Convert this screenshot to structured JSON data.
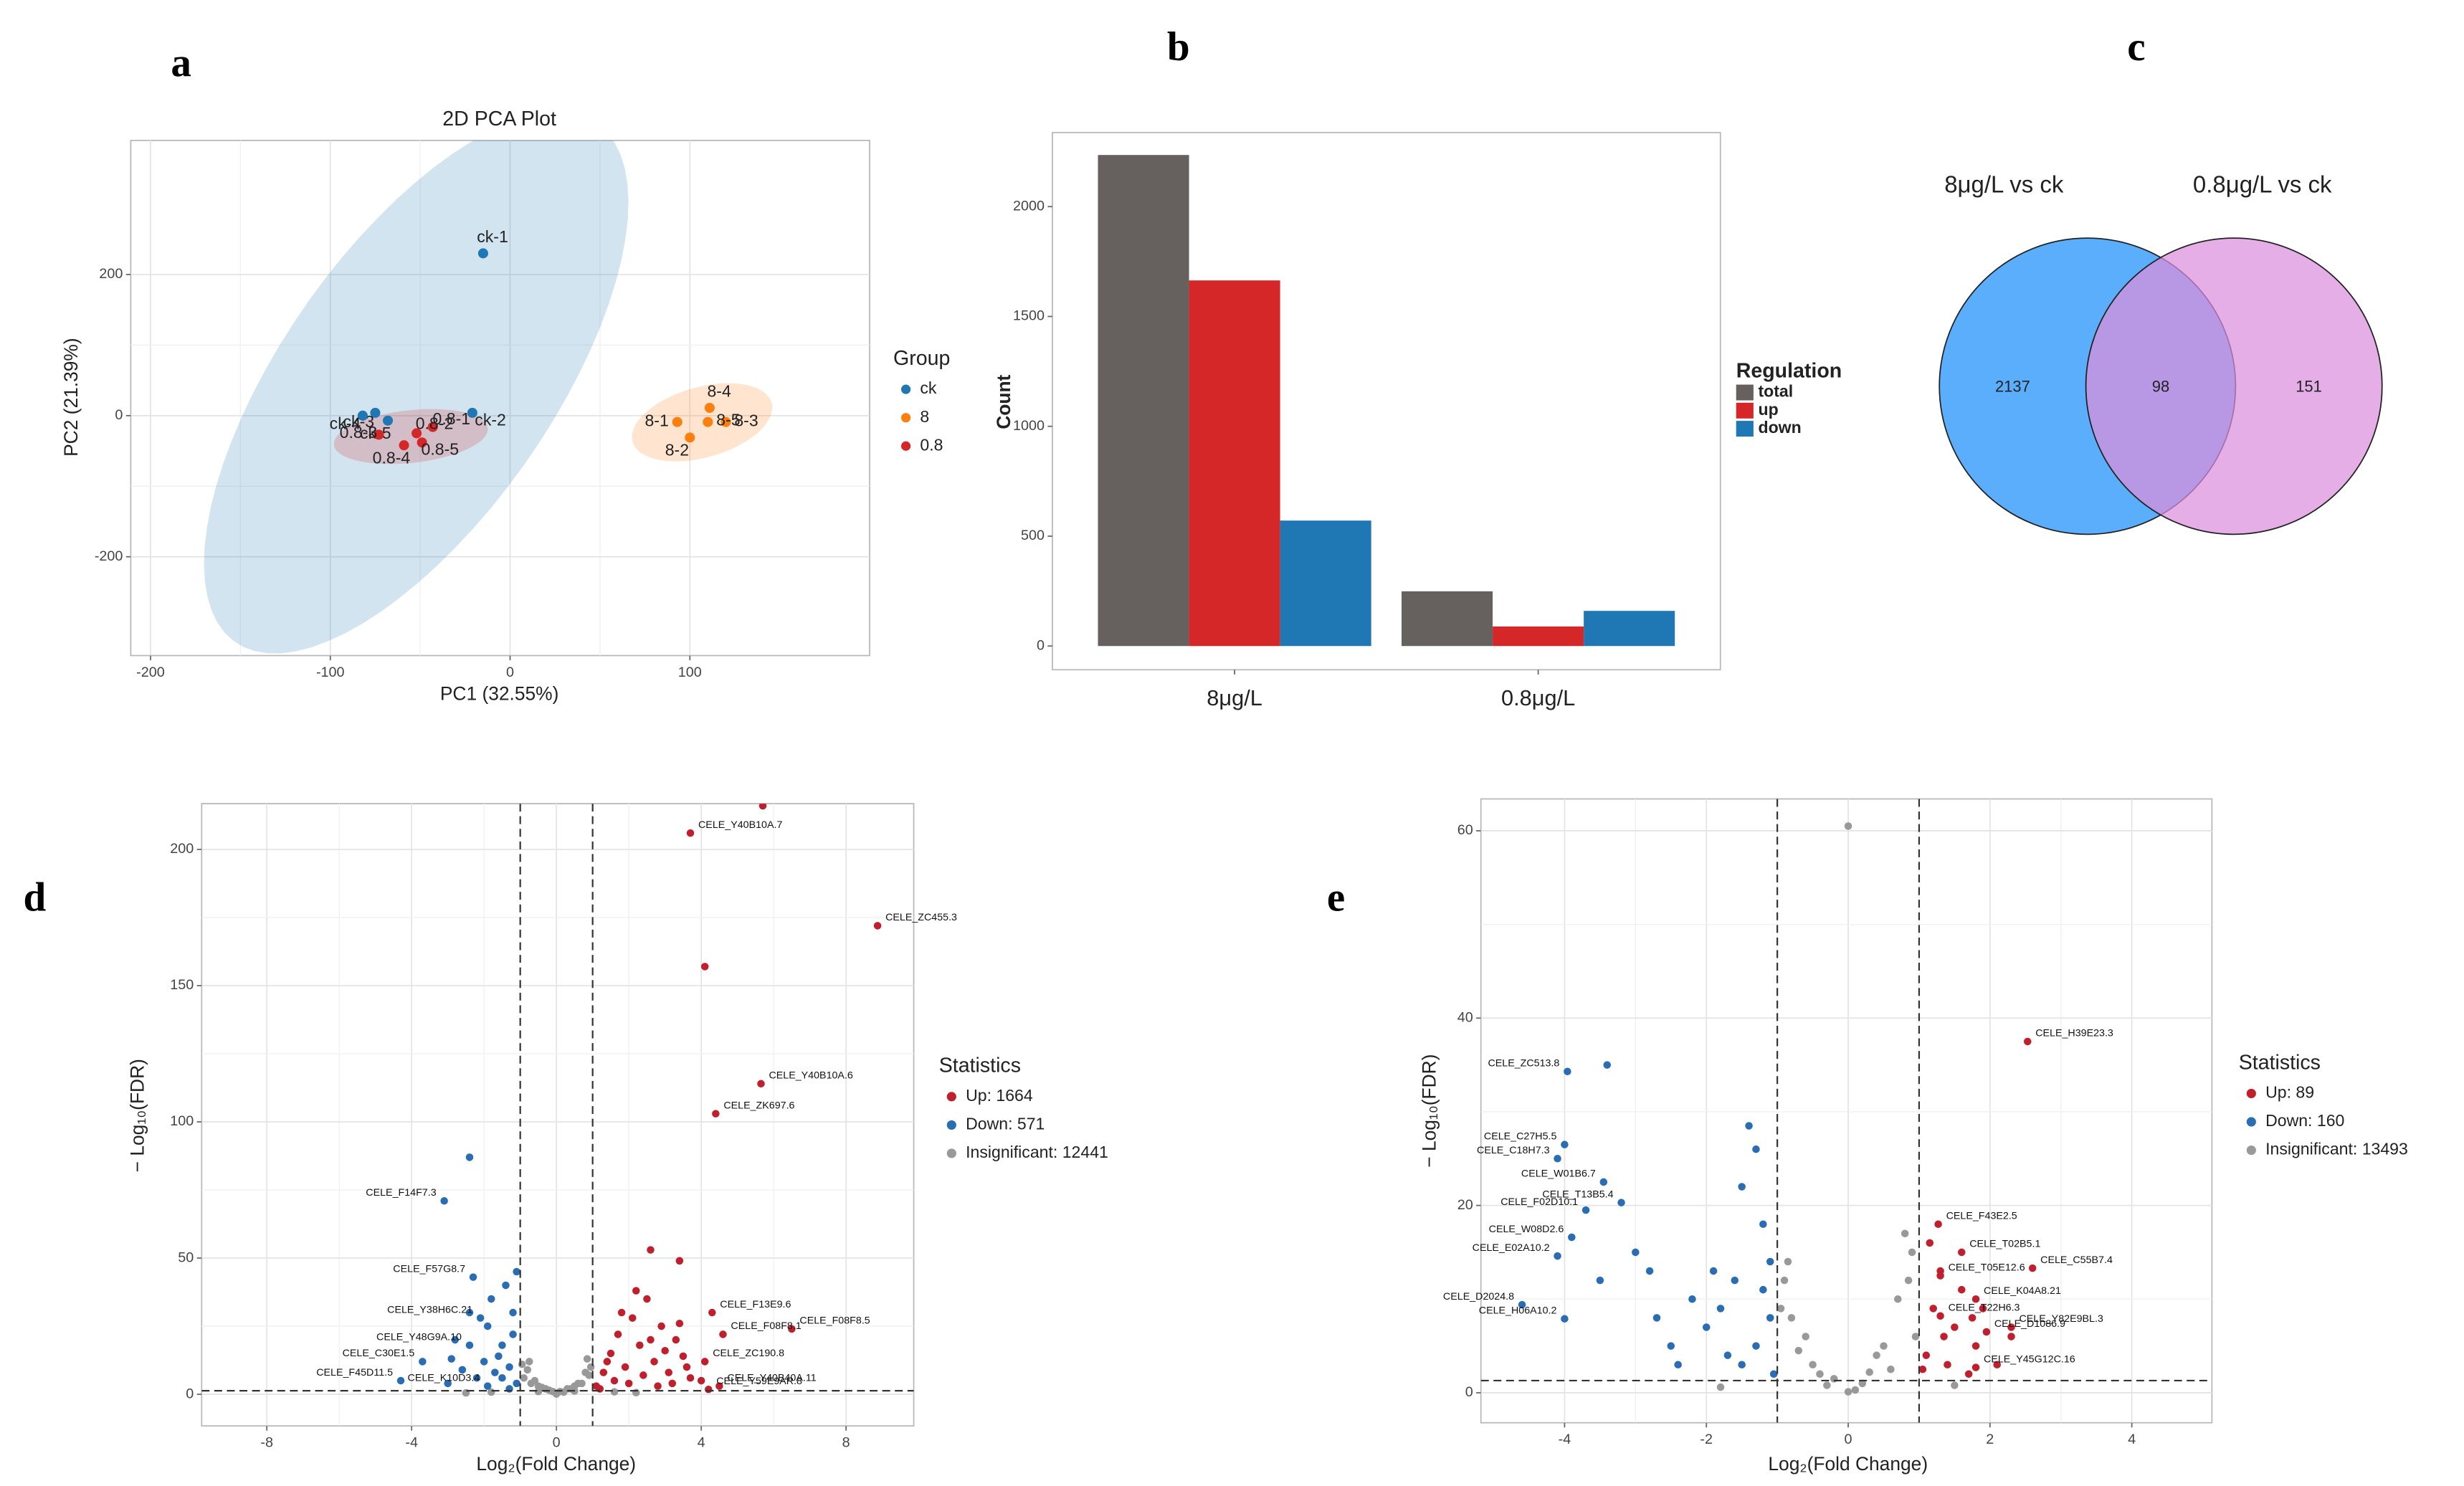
{
  "chart_data": [
    {
      "panel": "a",
      "type": "scatter",
      "title": "2D PCA Plot",
      "x_label": "PC1 (32.55%)",
      "y_label": "PC2 (21.39%)",
      "legend_title": "Group",
      "xlim": [
        -211,
        200
      ],
      "ylim": [
        -340,
        390
      ],
      "xticks": [
        -200,
        -100,
        0,
        100
      ],
      "yticks": [
        -200,
        0,
        200
      ],
      "grid": true,
      "ellipses": true,
      "series": [
        {
          "name": "ck",
          "color": "#1f77b4",
          "x": [
            -15,
            -21,
            -75,
            -82,
            -68
          ],
          "y": [
            230,
            4,
            4,
            0,
            -7
          ],
          "point_labels": [
            "ck-1",
            "ck-2",
            "ck-3",
            "ck-4",
            "ck-5"
          ]
        },
        {
          "name": "8",
          "color": "#ff7f0e",
          "x": [
            93,
            100,
            120,
            111,
            110
          ],
          "y": [
            -9,
            -31,
            -9,
            11,
            -9
          ],
          "point_labels": [
            "8-1",
            "8-2",
            "8-3",
            "8-4",
            "8-5"
          ]
        },
        {
          "name": "0.8",
          "color": "#d62728",
          "x": [
            -43,
            -52,
            -73,
            -59,
            -49
          ],
          "y": [
            -16,
            -25,
            -27,
            -42,
            -38
          ],
          "point_labels": [
            "0.8-1",
            "0.8-2",
            "0.8-3",
            "0.8-4",
            "0.8-5"
          ]
        }
      ]
    },
    {
      "panel": "b",
      "type": "bar",
      "y_label": "Count",
      "legend_title": "Regulation",
      "categories": [
        "8μg/L",
        "0.8μg/L"
      ],
      "ylim": [
        -108,
        2337
      ],
      "yticks": [
        0,
        500,
        1000,
        1500,
        2000
      ],
      "grid": false,
      "series": [
        {
          "name": "total",
          "color": "#66615e",
          "values": [
            2235,
            249
          ]
        },
        {
          "name": "up",
          "color": "#d62728",
          "values": [
            1664,
            89
          ]
        },
        {
          "name": "down",
          "color": "#1f77b4",
          "values": [
            571,
            160
          ]
        }
      ]
    },
    {
      "panel": "c",
      "type": "venn",
      "sets": [
        {
          "name": "8μg/L vs ck",
          "color": "#5aaefc"
        },
        {
          "name": "0.8μg/L vs ck",
          "color": "#dd8fdc"
        }
      ],
      "values": [
        2137,
        98,
        151
      ]
    },
    {
      "panel": "d",
      "type": "volcano",
      "x_label": "Log₂(Fold Change)",
      "y_label": "− Log₁₀(FDR)",
      "legend_title": "Statistics",
      "xlim": [
        -9.8,
        9.87
      ],
      "ylim": [
        -11.6,
        216.8
      ],
      "xticks": [
        -8,
        -4,
        0,
        4,
        8
      ],
      "yticks": [
        0,
        50,
        100,
        150,
        200
      ],
      "grid": true,
      "x_cutoffs": [
        -1,
        1
      ],
      "y_cutoff": 1.3,
      "series": [
        {
          "name": "Up: 1664",
          "color": "#c0202e",
          "x": [
            5.7,
            3.7,
            8.87,
            4.1,
            5.65,
            4.4,
            2.6,
            3.4,
            6.5,
            4.3,
            4.6,
            4.1,
            4.5,
            4.2,
            1.1,
            1.3,
            1.5,
            1.7,
            1.9,
            2.1,
            2.3,
            2.5,
            2.7,
            2.9,
            3.1,
            3.3,
            3.5,
            3.7,
            1.2,
            1.6,
            2.0,
            2.4,
            2.8,
            3.2,
            3.6,
            4.0,
            1.4,
            1.8,
            2.2,
            2.6,
            3.0,
            3.4
          ],
          "y": [
            216,
            206,
            172,
            157,
            114,
            103,
            53,
            49,
            24,
            30,
            22,
            12,
            3,
            1.8,
            3,
            8,
            15,
            22,
            10,
            28,
            18,
            35,
            12,
            25,
            8,
            20,
            14,
            6,
            2,
            5,
            4,
            7,
            3,
            4,
            10,
            5,
            12,
            30,
            38,
            20,
            16,
            26
          ],
          "point_labels": [
            null,
            "CELE_Y40B10A.7",
            "CELE_ZC455.3",
            null,
            "CELE_Y40B10A.6",
            "CELE_ZK697.6",
            null,
            null,
            "CELE_F08F8.5",
            "CELE_F13E9.6",
            "CELE_F08F8.1",
            "CELE_ZC190.8",
            "CELE_Y40B40A.11",
            "CELE_Y59E9AR.8",
            null,
            null,
            null,
            null,
            null,
            null,
            null,
            null,
            null,
            null,
            null,
            null,
            null,
            null,
            null,
            null,
            null,
            null,
            null,
            null,
            null,
            null,
            null,
            null,
            null,
            null,
            null,
            null
          ]
        },
        {
          "name": "Down: 571",
          "color": "#2a6db5",
          "x": [
            -3.1,
            -2.3,
            -2.1,
            -2.4,
            -3.7,
            -4.3,
            -1.9,
            -1.1,
            -1.3,
            -1.5,
            -1.7,
            -1.9,
            -1.2,
            -1.4,
            -1.1,
            -1.6,
            -2.0,
            -2.2,
            -2.6,
            -2.8,
            -3.0,
            -1.8,
            -1.3,
            -1.5,
            -2.4,
            -2.9,
            -1.2,
            -2.4
          ],
          "y": [
            71,
            43,
            28,
            18,
            12,
            5,
            3,
            4,
            10,
            18,
            8,
            25,
            30,
            40,
            45,
            14,
            12,
            6,
            9,
            20,
            4,
            35,
            2,
            6,
            30,
            13,
            22,
            87
          ],
          "point_labels": [
            "CELE_F14F7.3",
            "CELE_F57G8.7",
            "CELE_Y38H6C.21",
            "CELE_Y48G9A.10",
            "CELE_C30E1.5",
            "CELE_F45D11.5",
            "CELE_K10D3.4",
            null,
            null,
            null,
            null,
            null,
            null,
            null,
            null,
            null,
            null,
            null,
            null,
            null,
            null,
            null,
            null,
            null,
            null,
            null,
            null,
            null
          ]
        },
        {
          "name": "Insignificant: 12441",
          "color": "#999999",
          "x": [
            -0.9,
            -0.7,
            -0.5,
            -0.3,
            -0.1,
            0.1,
            0.3,
            0.5,
            0.7,
            0.9,
            -0.8,
            -0.6,
            -0.4,
            -0.2,
            0,
            0.2,
            0.4,
            0.6,
            0.8,
            -0.95,
            0.95,
            -1.8,
            -2.5,
            1.6,
            2.2,
            -0.75,
            0.85,
            -0.5,
            0.5,
            0.0
          ],
          "y": [
            6,
            4,
            3,
            2,
            1,
            1,
            2,
            3,
            4,
            7,
            9,
            5,
            2.5,
            1.5,
            0.3,
            0.8,
            2,
            4,
            8,
            11,
            10,
            0.8,
            0.5,
            0.9,
            0.6,
            12,
            13,
            1,
            1.2,
            0.1
          ]
        }
      ]
    },
    {
      "panel": "e",
      "type": "volcano",
      "x_label": "Log₂(Fold Change)",
      "y_label": "− Log₁₀(FDR)",
      "legend_title": "Statistics",
      "xlim": [
        -5.18,
        5.13
      ],
      "ylim": [
        -3.2,
        63.4
      ],
      "xticks": [
        -4,
        -2,
        0,
        2,
        4
      ],
      "yticks": [
        0,
        20,
        40,
        60
      ],
      "grid": true,
      "x_cutoffs": [
        -1,
        1
      ],
      "y_cutoff": 1.3,
      "series": [
        {
          "name": "Up: 89",
          "color": "#c0202e",
          "x": [
            2.53,
            1.27,
            1.6,
            2.6,
            1.3,
            1.8,
            1.3,
            2.3,
            1.95,
            1.8,
            1.1,
            1.2,
            1.3,
            1.4,
            1.5,
            1.6,
            1.7,
            1.8,
            1.9,
            2.1,
            2.3,
            1.15,
            1.05,
            1.35,
            1.75
          ],
          "y": [
            37.5,
            18,
            15,
            13.3,
            12.5,
            10,
            8.2,
            7,
            6.5,
            2.7,
            4,
            9,
            13,
            3,
            7,
            11,
            2,
            5,
            9,
            3,
            6,
            16,
            2.5,
            6,
            8
          ],
          "point_labels": [
            "CELE_H39E23.3",
            "CELE_F43E2.5",
            "CELE_T02B5.1",
            "CELE_C55B7.4",
            "CELE_T05E12.6",
            "CELE_K04A8.21",
            "CELE_T22H6.3",
            "CELE_Y82E9BL.3",
            "CELE_D1086.9",
            "CELE_Y45G12C.16",
            null,
            null,
            null,
            null,
            null,
            null,
            null,
            null,
            null,
            null,
            null,
            null,
            null,
            null,
            null
          ]
        },
        {
          "name": "Down: 160",
          "color": "#2a6db5",
          "x": [
            -3.96,
            -4.0,
            -4.1,
            -3.45,
            -3.7,
            -3.2,
            -3.9,
            -4.1,
            -4.6,
            -4.0,
            -3.4,
            -1.4,
            -1.3,
            -1.5,
            -1.2,
            -1.1,
            -1.6,
            -1.8,
            -2.0,
            -2.2,
            -2.5,
            -2.8,
            -3.0,
            -1.3,
            -1.5,
            -1.1,
            -1.7,
            -2.4,
            -1.9,
            -1.2,
            -3.5,
            -2.7,
            -1.05
          ],
          "y": [
            34.3,
            26.5,
            25,
            22.5,
            19.5,
            20.3,
            16.6,
            14.6,
            9.4,
            7.9,
            35,
            28.5,
            26,
            22,
            18,
            14,
            12,
            9,
            7,
            10,
            5,
            13,
            15,
            5,
            3,
            8,
            4,
            3,
            13,
            11,
            12,
            8,
            2
          ],
          "point_labels": [
            "CELE_ZC513.8",
            "CELE_C27H5.5",
            "CELE_C18H7.3",
            "CELE_W01B6.7",
            "CELE_F02D10.1",
            "CELE_T13B5.4",
            "CELE_W08D2.6",
            "CELE_E02A10.2",
            "CELE_D2024.8",
            "CELE_H06A10.2",
            null,
            null,
            null,
            null,
            null,
            null,
            null,
            null,
            null,
            null,
            null,
            null,
            null,
            null,
            null,
            null,
            null,
            null,
            null,
            null,
            null,
            null,
            null
          ]
        },
        {
          "name": "Insignificant: 13493",
          "color": "#999999",
          "x": [
            0,
            -0.5,
            0.2,
            0.6,
            -0.8,
            0.9,
            0.8,
            -0.9,
            -0.3,
            0.4,
            -0.6,
            0.7,
            0.95,
            -0.95,
            0.1,
            -0.2,
            0.5,
            -0.4,
            0.3,
            -0.7,
            0.85,
            -0.85,
            1.5,
            -1.8,
            0.0
          ],
          "y": [
            60.5,
            3,
            1,
            2.5,
            8,
            15,
            17,
            12,
            0.8,
            4,
            6,
            10,
            6,
            9,
            0.3,
            1.5,
            5,
            2,
            2.2,
            4.5,
            12,
            14,
            0.8,
            0.6,
            0.1
          ]
        }
      ]
    }
  ]
}
